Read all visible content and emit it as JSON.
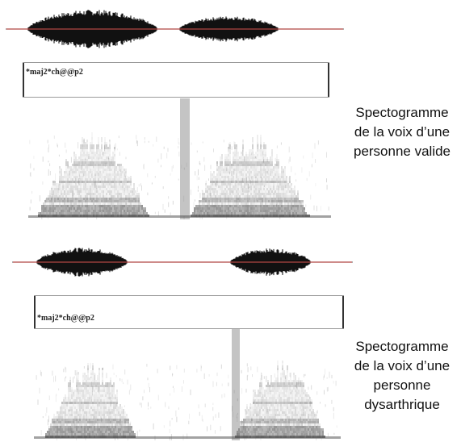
{
  "panels": [
    {
      "transcription": "*maj2*ch@@p2",
      "caption": [
        "Spectogramme",
        "de la voix d’une",
        "personne valide"
      ]
    },
    {
      "transcription": "*maj2*ch@@p2",
      "caption": [
        "Spectogramme",
        "de la voix d’une",
        "personne",
        "dysarthrique"
      ]
    }
  ],
  "colors": {
    "waveform": "#111111",
    "baseline": "#d9534f",
    "spectrogram": "#555555"
  }
}
